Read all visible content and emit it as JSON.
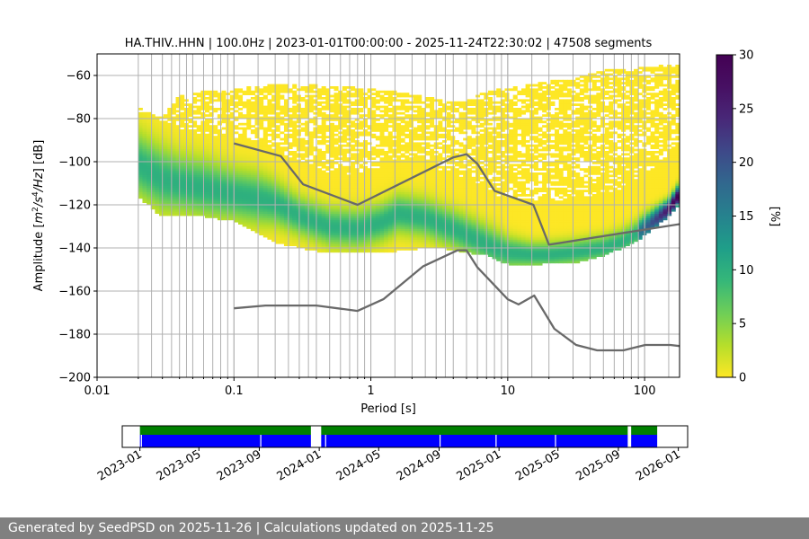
{
  "colors": {
    "nlnm_nhnm_line": "#696969",
    "grid": "#b0b0b0",
    "availability_bar": "#0000ff",
    "availability_strip": "#008000",
    "footer_bg": "#808080",
    "footer_text": "#ffffff"
  },
  "colormap": "viridis_r",
  "footer": {
    "text": "Generated by SeedPSD on 2025-11-26 | Calculations updated on 2025-11-25"
  },
  "chart_data": [
    {
      "type": "heatmap",
      "title": "HA.THIV..HHN | 100.0Hz | 2023-01-01T00:00:00 - 2025-11-24T22:30:02 | 47508 segments",
      "xlabel": "Period [s]",
      "ylabel_parts": [
        "Amplitude [",
        "m",
        "2",
        "/s",
        "4",
        "/Hz",
        "] [dB]"
      ],
      "x_scale": "log",
      "xlim": [
        0.01,
        180
      ],
      "ylim": [
        -200,
        -50
      ],
      "x_ticks": [
        {
          "value": 0.01,
          "label": "0.01"
        },
        {
          "value": 0.1,
          "label": "0.1"
        },
        {
          "value": 1,
          "label": "1"
        },
        {
          "value": 10,
          "label": "10"
        },
        {
          "value": 100,
          "label": "100"
        }
      ],
      "y_ticks": [
        {
          "value": -200,
          "label": "−200"
        },
        {
          "value": -180,
          "label": "−180"
        },
        {
          "value": -160,
          "label": "−160"
        },
        {
          "value": -140,
          "label": "−140"
        },
        {
          "value": -120,
          "label": "−120"
        },
        {
          "value": -100,
          "label": "−100"
        },
        {
          "value": -80,
          "label": "−80"
        },
        {
          "value": -60,
          "label": "−60"
        }
      ],
      "vertical_grid_periods": [
        0.02,
        0.025,
        0.03,
        0.035,
        0.04,
        0.045,
        0.05,
        0.06,
        0.07,
        0.08,
        0.09,
        0.1,
        0.15,
        0.2,
        0.25,
        0.3,
        0.35,
        0.4,
        0.5,
        0.6,
        0.7,
        0.8,
        0.9,
        1,
        1.5,
        2,
        2.5,
        3,
        3.5,
        4,
        5,
        6,
        7,
        8,
        9,
        10,
        15,
        20,
        30,
        40,
        50,
        60,
        70,
        80,
        90,
        100,
        150
      ],
      "colorbar": {
        "label": "[%]",
        "range": [
          0,
          30
        ],
        "ticks": [
          {
            "value": 0,
            "label": "0"
          },
          {
            "value": 5,
            "label": "5"
          },
          {
            "value": 10,
            "label": "10"
          },
          {
            "value": 15,
            "label": "15"
          },
          {
            "value": 20,
            "label": "20"
          },
          {
            "value": 25,
            "label": "25"
          },
          {
            "value": 30,
            "label": "30"
          }
        ]
      },
      "psd_envelope": {
        "period": [
          0.02,
          0.022,
          0.025,
          0.03,
          0.04,
          0.06,
          0.1,
          0.2,
          0.4,
          0.8,
          1.5,
          3,
          4.5,
          7,
          10,
          15,
          20,
          30,
          50,
          80,
          120,
          180
        ],
        "top_db": [
          -75,
          -76,
          -78,
          -80,
          -70,
          -67,
          -67,
          -64,
          -65,
          -66,
          -68,
          -71,
          -73,
          -68,
          -66,
          -64,
          -63,
          -62,
          -58,
          -57,
          -56,
          -55
        ],
        "bottom_db": [
          -116,
          -118,
          -121,
          -125,
          -125,
          -125,
          -127,
          -137,
          -141,
          -142,
          -141,
          -139,
          -141,
          -143,
          -147,
          -148,
          -146,
          -147,
          -143,
          -138,
          -130,
          -120
        ]
      },
      "psd_mode": {
        "period": [
          0.02,
          0.025,
          0.03,
          0.04,
          0.06,
          0.1,
          0.15,
          0.2,
          0.3,
          0.5,
          0.8,
          1.2,
          1.6,
          2.5,
          4,
          6,
          8,
          10,
          15,
          20,
          30,
          50,
          70,
          100,
          150,
          180
        ],
        "db": [
          -101,
          -105,
          -108,
          -110,
          -112,
          -115,
          -117,
          -119,
          -125,
          -130,
          -131,
          -128,
          -124,
          -126,
          -131,
          -136,
          -140,
          -142,
          -143,
          -143,
          -142,
          -140,
          -137,
          -131,
          -122,
          -115
        ],
        "width_db": [
          10,
          10,
          10,
          9,
          9,
          8,
          8,
          7,
          6,
          6,
          6,
          6,
          6,
          6,
          6,
          6,
          6,
          5,
          4,
          4,
          4,
          4,
          4,
          4,
          3,
          3
        ]
      },
      "series": [
        {
          "key": "nhnm",
          "period": [
            0.1,
            0.22,
            0.32,
            0.8,
            4,
            5,
            6,
            8,
            15.4,
            20,
            354.8
          ],
          "db": [
            -91.5,
            -97.4,
            -110.5,
            -120,
            -98,
            -96.5,
            -101,
            -113.5,
            -120,
            -138.5,
            -126
          ]
        },
        {
          "key": "nlnm",
          "period": [
            0.1,
            0.17,
            0.4,
            0.8,
            1.24,
            2.4,
            4.3,
            5,
            6,
            10,
            12,
            15.6,
            21.9,
            31.6,
            45,
            70,
            101,
            154,
            180
          ],
          "db": [
            -168,
            -166.7,
            -166.7,
            -169.2,
            -163.7,
            -148.6,
            -141.1,
            -141.1,
            -149,
            -163.8,
            -166.2,
            -162.1,
            -177.5,
            -185,
            -187.5,
            -187.5,
            -185,
            -185,
            -185.5
          ]
        }
      ]
    },
    {
      "type": "availability",
      "date_range": [
        "2023-01-01",
        "2025-11-24"
      ],
      "xlim": [
        "2022-11-26",
        "2026-01-20"
      ],
      "x_ticks": [
        "2023-01",
        "2023-05",
        "2023-09",
        "2024-01",
        "2024-05",
        "2024-09",
        "2025-01",
        "2025-05",
        "2025-09",
        "2026-01"
      ],
      "data_intervals": [
        [
          "2023-01-01",
          "2023-12-15"
        ],
        [
          "2024-01-05",
          "2025-09-20"
        ],
        [
          "2025-09-27",
          "2025-11-19"
        ]
      ],
      "small_gaps": [
        "2023-01-04",
        "2023-09-04",
        "2024-01-14",
        "2024-09-03",
        "2024-12-26",
        "2025-04-26"
      ]
    }
  ]
}
